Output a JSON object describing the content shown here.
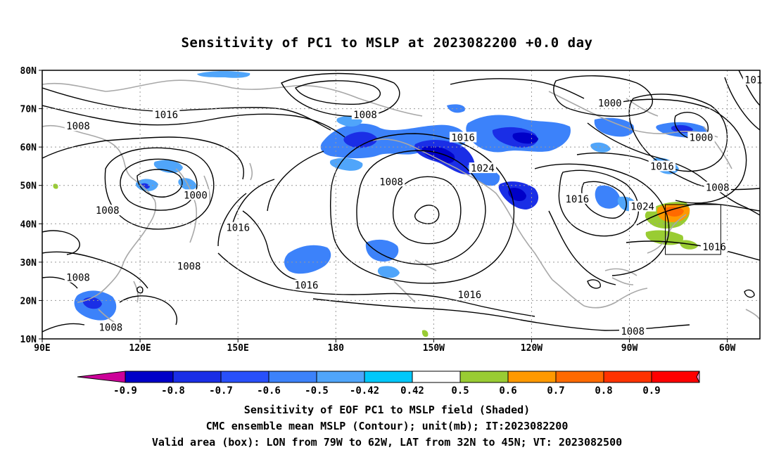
{
  "title": "Sensitivity of PC1 to MSLP at 2023082200 +0.0 day",
  "map": {
    "lat_labels": [
      "80N",
      "70N",
      "60N",
      "50N",
      "40N",
      "30N",
      "20N",
      "10N"
    ],
    "lon_labels": [
      "90E",
      "120E",
      "150E",
      "180",
      "150W",
      "120W",
      "90W",
      "60W"
    ],
    "lon_range": [
      90,
      310
    ],
    "lat_range": [
      10,
      80
    ],
    "contour_labels": [
      {
        "text": "1016",
        "lon": 128,
        "lat": 68.5
      },
      {
        "text": "1008",
        "lon": 189,
        "lat": 68.5
      },
      {
        "text": "1008",
        "lon": 101,
        "lat": 65.5
      },
      {
        "text": "1000",
        "lon": 264,
        "lat": 71.5
      },
      {
        "text": "1000",
        "lon": 292,
        "lat": 62.5
      },
      {
        "text": "1016",
        "lon": 219,
        "lat": 62.5
      },
      {
        "text": "1024",
        "lon": 225,
        "lat": 54.5
      },
      {
        "text": "1016",
        "lon": 280,
        "lat": 55
      },
      {
        "text": "1008",
        "lon": 197,
        "lat": 51
      },
      {
        "text": "1008",
        "lon": 297,
        "lat": 49.5
      },
      {
        "text": "1000",
        "lon": 137,
        "lat": 47.5
      },
      {
        "text": "1008",
        "lon": 110,
        "lat": 43.5
      },
      {
        "text": "1016",
        "lon": 254,
        "lat": 46.5
      },
      {
        "text": "1024",
        "lon": 274,
        "lat": 44.5
      },
      {
        "text": "1016",
        "lon": 150,
        "lat": 39
      },
      {
        "text": "1008",
        "lon": 135,
        "lat": 29
      },
      {
        "text": "1008",
        "lon": 101,
        "lat": 26
      },
      {
        "text": "1016",
        "lon": 171,
        "lat": 24
      },
      {
        "text": "1016",
        "lon": 221,
        "lat": 21.5
      },
      {
        "text": "1016",
        "lon": 296,
        "lat": 34
      },
      {
        "text": "1008",
        "lon": 111,
        "lat": 13
      },
      {
        "text": "1008",
        "lon": 271,
        "lat": 12
      },
      {
        "text": "101",
        "lon": 308,
        "lat": 77.5
      }
    ],
    "valid_box": {
      "lon_min": 281,
      "lon_max": 298,
      "lat_min": 32,
      "lat_max": 45
    }
  },
  "colorbar": {
    "labels": [
      "-0.9",
      "-0.8",
      "-0.7",
      "-0.6",
      "-0.5",
      "-0.42",
      "0.42",
      "0.5",
      "0.6",
      "0.7",
      "0.8",
      "0.9"
    ],
    "colors": [
      "#cc0099",
      "#0000c8",
      "#1a2ee6",
      "#2850fa",
      "#3c82fa",
      "#50a5fa",
      "#00c8fa",
      "#ffffff",
      "#99cc33",
      "#ff9900",
      "#ff6a00",
      "#ff3300",
      "#ff0000",
      "#ff99cc"
    ]
  },
  "footer": {
    "line1": "Sensitivity of EOF PC1 to MSLP field (Shaded)",
    "line2": "CMC ensemble mean MSLP (Contour); unit(mb); IT:2023082200",
    "line3": "Valid area (box): LON from 79W to 62W, LAT from 32N to 45N; VT: 2023082500"
  }
}
